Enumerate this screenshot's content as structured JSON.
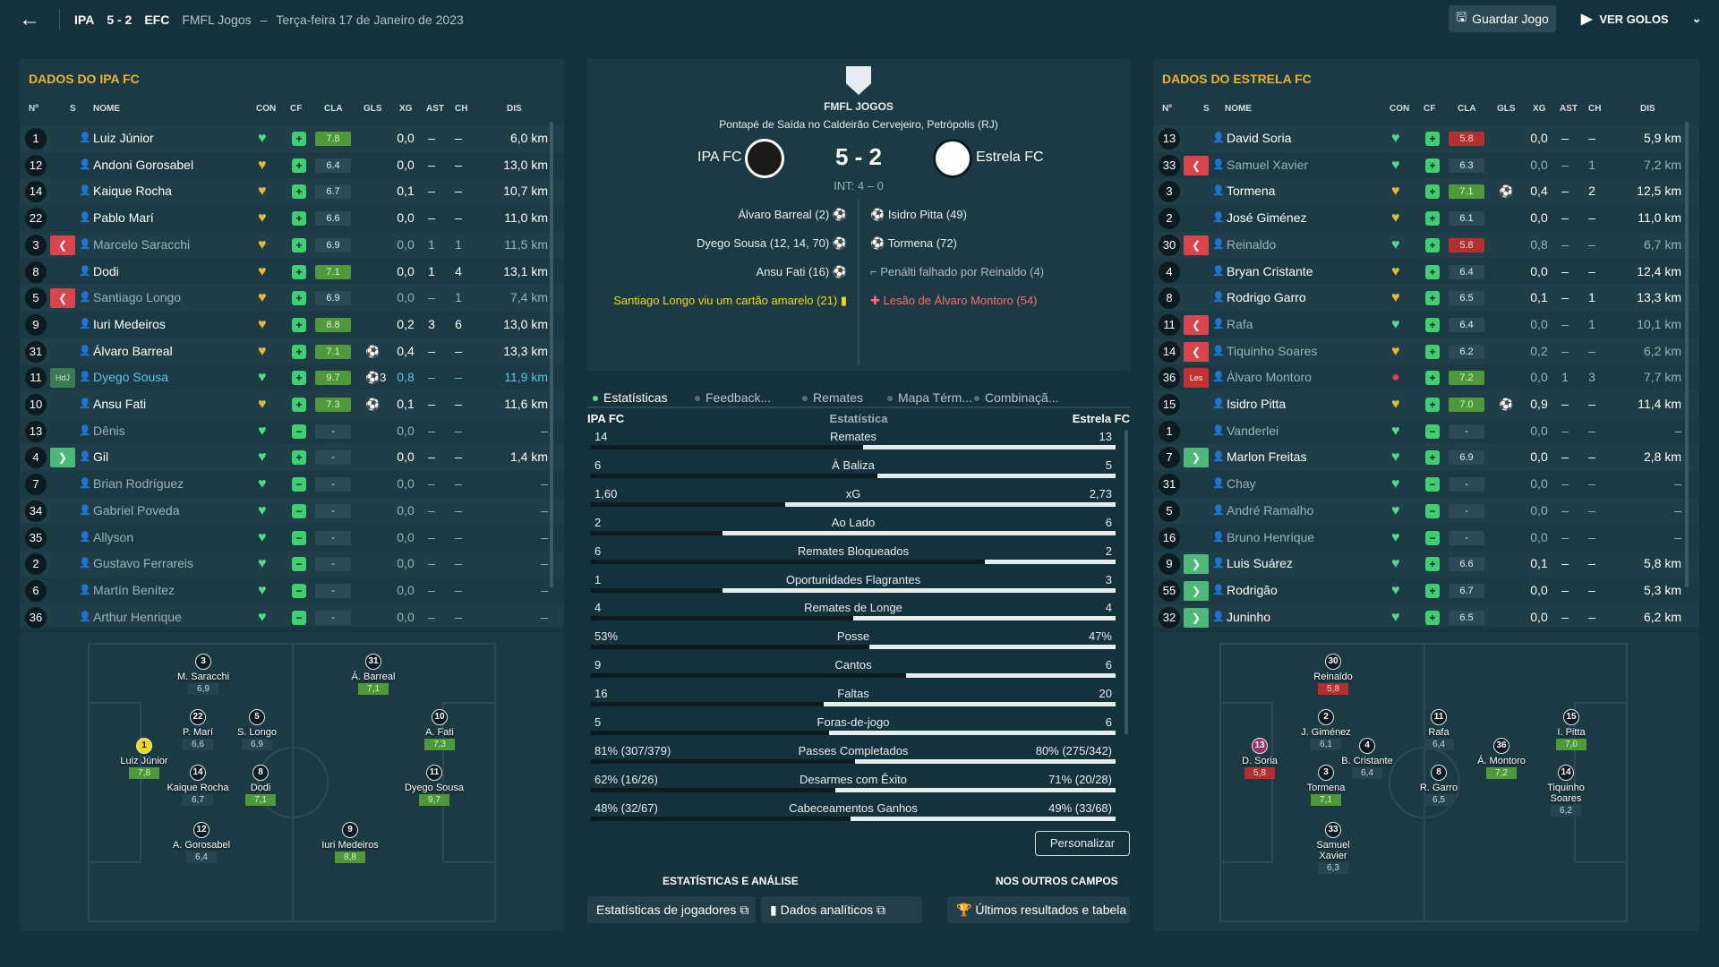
{
  "header": {
    "home_abbr": "IPA",
    "score": "5 - 2",
    "away_abbr": "EFC",
    "competition": "FMFL Jogos",
    "dash": "–",
    "date": "Terça-feira 17 de Janeiro de 2023",
    "save_label": "Guardar Jogo",
    "goals_label": "VER GOLOS"
  },
  "columns": {
    "no": "Nº",
    "s": "S",
    "name": "NOME",
    "con": "CON",
    "cf": "CF",
    "cla": "CLA",
    "gls": "GLS",
    "xg": "XG",
    "ast": "AST",
    "ch": "CH",
    "dis": "DIS"
  },
  "home": {
    "title": "DADOS DO IPA FC",
    "players": [
      {
        "no": "1",
        "sub": "",
        "name": "Luiz Júnior",
        "con": "g",
        "cla": "7.8",
        "cc": "g",
        "gls": "",
        "xg": "0,0",
        "ast": "–",
        "ch": "–",
        "dis": "6,0 km",
        "dim": false
      },
      {
        "no": "12",
        "sub": "",
        "name": "Andoni Gorosabel",
        "con": "y",
        "cla": "6.4",
        "cc": "",
        "gls": "",
        "xg": "0,0",
        "ast": "–",
        "ch": "–",
        "dis": "13,0 km",
        "dim": false
      },
      {
        "no": "14",
        "sub": "",
        "name": "Kaique Rocha",
        "con": "y",
        "cla": "6.7",
        "cc": "",
        "gls": "",
        "xg": "0,1",
        "ast": "–",
        "ch": "–",
        "dis": "10,7 km",
        "dim": false
      },
      {
        "no": "22",
        "sub": "",
        "name": "Pablo Marí",
        "con": "y",
        "cla": "6.6",
        "cc": "",
        "gls": "",
        "xg": "0,0",
        "ast": "–",
        "ch": "–",
        "dis": "11,0 km",
        "dim": false
      },
      {
        "no": "3",
        "sub": "out",
        "name": "Marcelo Saracchi",
        "con": "y",
        "cla": "6.9",
        "cc": "",
        "gls": "",
        "xg": "0,0",
        "ast": "1",
        "ch": "1",
        "dis": "11,5 km",
        "dim": true
      },
      {
        "no": "8",
        "sub": "",
        "name": "Dodi",
        "con": "y",
        "cla": "7.1",
        "cc": "g",
        "gls": "",
        "xg": "0,0",
        "ast": "1",
        "ch": "4",
        "dis": "13,1 km",
        "dim": false
      },
      {
        "no": "5",
        "sub": "out",
        "name": "Santiago Longo",
        "con": "y",
        "cla": "6.9",
        "cc": "",
        "gls": "",
        "xg": "0,0",
        "ast": "–",
        "ch": "1",
        "dis": "7,4 km",
        "dim": true
      },
      {
        "no": "9",
        "sub": "",
        "name": "Iuri Medeiros",
        "con": "y",
        "cla": "8.8",
        "cc": "g",
        "gls": "",
        "xg": "0,2",
        "ast": "3",
        "ch": "6",
        "dis": "13,0 km",
        "dim": false
      },
      {
        "no": "31",
        "sub": "",
        "name": "Álvaro Barreal",
        "con": "y",
        "cla": "7.1",
        "cc": "g",
        "gls": "⚽",
        "xg": "0,4",
        "ast": "–",
        "ch": "–",
        "dis": "13,3 km",
        "dim": false
      },
      {
        "no": "11",
        "sub": "motm",
        "name": "Dyego Sousa",
        "con": "g",
        "cla": "9.7",
        "cc": "g",
        "gls": "⚽3",
        "xg": "0,8",
        "ast": "–",
        "ch": "–",
        "dis": "11,9 km",
        "dim": false,
        "hl": true
      },
      {
        "no": "10",
        "sub": "",
        "name": "Ansu Fati",
        "con": "y",
        "cla": "7.3",
        "cc": "g",
        "gls": "⚽",
        "xg": "0,1",
        "ast": "–",
        "ch": "–",
        "dis": "11,6 km",
        "dim": false
      },
      {
        "no": "13",
        "sub": "",
        "name": "Dênis",
        "con": "g",
        "cla": "-",
        "cc": "",
        "gls": "",
        "xg": "0,0",
        "ast": "–",
        "ch": "–",
        "dis": "–",
        "dim": true
      },
      {
        "no": "4",
        "sub": "in",
        "name": "Gil",
        "con": "g",
        "cla": "-",
        "cc": "",
        "gls": "",
        "xg": "0,0",
        "ast": "–",
        "ch": "–",
        "dis": "1,4 km",
        "dim": false
      },
      {
        "no": "7",
        "sub": "",
        "name": "Brian Rodríguez",
        "con": "g",
        "cla": "-",
        "cc": "",
        "gls": "",
        "xg": "0,0",
        "ast": "–",
        "ch": "–",
        "dis": "–",
        "dim": true
      },
      {
        "no": "34",
        "sub": "",
        "name": "Gabriel Poveda",
        "con": "g",
        "cla": "-",
        "cc": "",
        "gls": "",
        "xg": "0,0",
        "ast": "–",
        "ch": "–",
        "dis": "–",
        "dim": true
      },
      {
        "no": "35",
        "sub": "",
        "name": "Allyson",
        "con": "g",
        "cla": "-",
        "cc": "",
        "gls": "",
        "xg": "0,0",
        "ast": "–",
        "ch": "–",
        "dis": "–",
        "dim": true
      },
      {
        "no": "2",
        "sub": "",
        "name": "Gustavo Ferrareis",
        "con": "g",
        "cla": "-",
        "cc": "",
        "gls": "",
        "xg": "0,0",
        "ast": "–",
        "ch": "–",
        "dis": "–",
        "dim": true
      },
      {
        "no": "6",
        "sub": "",
        "name": "Martín Benítez",
        "con": "g",
        "cla": "-",
        "cc": "",
        "gls": "",
        "xg": "0,0",
        "ast": "–",
        "ch": "–",
        "dis": "–",
        "dim": true
      },
      {
        "no": "36",
        "sub": "",
        "name": "Arthur Henrique",
        "con": "g",
        "cla": "-",
        "cc": "",
        "gls": "",
        "xg": "0,0",
        "ast": "–",
        "ch": "–",
        "dis": "–",
        "dim": true
      }
    ]
  },
  "away": {
    "title": "DADOS DO ESTRELA FC",
    "players": [
      {
        "no": "13",
        "sub": "",
        "name": "David Soria",
        "con": "g",
        "cla": "5.8",
        "cc": "r",
        "gls": "",
        "xg": "0,0",
        "ast": "–",
        "ch": "–",
        "dis": "5,9 km",
        "dim": false
      },
      {
        "no": "33",
        "sub": "out",
        "name": "Samuel Xavier",
        "con": "g",
        "cla": "6.3",
        "cc": "",
        "gls": "",
        "xg": "0,0",
        "ast": "–",
        "ch": "1",
        "dis": "7,2 km",
        "dim": true
      },
      {
        "no": "3",
        "sub": "",
        "name": "Tormena",
        "con": "y",
        "cla": "7.1",
        "cc": "g",
        "gls": "⚽",
        "xg": "0,4",
        "ast": "–",
        "ch": "2",
        "dis": "12,5 km",
        "dim": false
      },
      {
        "no": "2",
        "sub": "",
        "name": "José Giménez",
        "con": "y",
        "cla": "6.1",
        "cc": "",
        "gls": "",
        "xg": "0,0",
        "ast": "–",
        "ch": "–",
        "dis": "11,0 km",
        "dim": false
      },
      {
        "no": "30",
        "sub": "out",
        "name": "Reinaldo",
        "con": "g",
        "cla": "5.8",
        "cc": "r",
        "gls": "",
        "xg": "0,8",
        "ast": "–",
        "ch": "–",
        "dis": "6,7 km",
        "dim": true
      },
      {
        "no": "4",
        "sub": "",
        "name": "Bryan Cristante",
        "con": "y",
        "cla": "6.4",
        "cc": "",
        "gls": "",
        "xg": "0,0",
        "ast": "–",
        "ch": "–",
        "dis": "12,4 km",
        "dim": false
      },
      {
        "no": "8",
        "sub": "",
        "name": "Rodrigo Garro",
        "con": "y",
        "cla": "6.5",
        "cc": "",
        "gls": "",
        "xg": "0,1",
        "ast": "–",
        "ch": "1",
        "dis": "13,3 km",
        "dim": false
      },
      {
        "no": "11",
        "sub": "out",
        "name": "Rafa",
        "con": "g",
        "cla": "6.4",
        "cc": "",
        "gls": "",
        "xg": "0,0",
        "ast": "–",
        "ch": "1",
        "dis": "10,1 km",
        "dim": true
      },
      {
        "no": "14",
        "sub": "out",
        "name": "Tiquinho Soares",
        "con": "y",
        "cla": "6.2",
        "cc": "",
        "gls": "",
        "xg": "0,2",
        "ast": "–",
        "ch": "–",
        "dis": "6,2 km",
        "dim": true
      },
      {
        "no": "36",
        "sub": "les",
        "name": "Álvaro Montoro",
        "con": "r",
        "cla": "7.2",
        "cc": "g",
        "gls": "",
        "xg": "0,0",
        "ast": "1",
        "ch": "3",
        "dis": "7,7 km",
        "dim": true
      },
      {
        "no": "15",
        "sub": "",
        "name": "Isidro Pitta",
        "con": "y",
        "cla": "7.0",
        "cc": "g",
        "gls": "⚽",
        "xg": "0,9",
        "ast": "–",
        "ch": "–",
        "dis": "11,4 km",
        "dim": false
      },
      {
        "no": "1",
        "sub": "",
        "name": "Vanderlei",
        "con": "g",
        "cla": "-",
        "cc": "",
        "gls": "",
        "xg": "0,0",
        "ast": "–",
        "ch": "–",
        "dis": "–",
        "dim": true
      },
      {
        "no": "7",
        "sub": "in",
        "name": "Marlon Freitas",
        "con": "g",
        "cla": "6.9",
        "cc": "",
        "gls": "",
        "xg": "0,0",
        "ast": "–",
        "ch": "–",
        "dis": "2,8 km",
        "dim": false
      },
      {
        "no": "31",
        "sub": "",
        "name": "Chay",
        "con": "g",
        "cla": "-",
        "cc": "",
        "gls": "",
        "xg": "0,0",
        "ast": "–",
        "ch": "–",
        "dis": "–",
        "dim": true
      },
      {
        "no": "5",
        "sub": "",
        "name": "André Ramalho",
        "con": "g",
        "cla": "-",
        "cc": "",
        "gls": "",
        "xg": "0,0",
        "ast": "–",
        "ch": "–",
        "dis": "–",
        "dim": true
      },
      {
        "no": "16",
        "sub": "",
        "name": "Bruno Henrique",
        "con": "g",
        "cla": "-",
        "cc": "",
        "gls": "",
        "xg": "0,0",
        "ast": "–",
        "ch": "–",
        "dis": "–",
        "dim": true
      },
      {
        "no": "9",
        "sub": "in",
        "name": "Luis Suárez",
        "con": "g",
        "cla": "6.6",
        "cc": "",
        "gls": "",
        "xg": "0,1",
        "ast": "–",
        "ch": "–",
        "dis": "5,8 km",
        "dim": false
      },
      {
        "no": "55",
        "sub": "in",
        "name": "Rodrigão",
        "con": "g",
        "cla": "6.7",
        "cc": "",
        "gls": "",
        "xg": "0,0",
        "ast": "–",
        "ch": "–",
        "dis": "5,3 km",
        "dim": false
      },
      {
        "no": "32",
        "sub": "in",
        "name": "Juninho",
        "con": "g",
        "cla": "6.5",
        "cc": "",
        "gls": "",
        "xg": "0,0",
        "ast": "–",
        "ch": "–",
        "dis": "6,2 km",
        "dim": false
      }
    ]
  },
  "home_pitch": [
    {
      "no": "3",
      "name": "M. Saracchi",
      "rating": "6,9",
      "rc": ""
    },
    {
      "no": "31",
      "name": "Á. Barreal",
      "rating": "7,1",
      "rc": "g"
    },
    {
      "no": "22",
      "name": "P. Marí",
      "rating": "6,6",
      "rc": ""
    },
    {
      "no": "5",
      "name": "S. Longo",
      "rating": "6,9",
      "rc": ""
    },
    {
      "no": "10",
      "name": "A. Fati",
      "rating": "7,3",
      "rc": "g"
    },
    {
      "no": "1",
      "name": "Luiz Júnior",
      "rating": "7,8",
      "rc": "g",
      "gk": true
    },
    {
      "no": "14",
      "name": "Kaique Rocha",
      "rating": "6,7",
      "rc": ""
    },
    {
      "no": "8",
      "name": "Dodi",
      "rating": "7,1",
      "rc": "g"
    },
    {
      "no": "11",
      "name": "Dyego Sousa",
      "rating": "9,7",
      "rc": "g"
    },
    {
      "no": "12",
      "name": "A. Gorosabel",
      "rating": "6,4",
      "rc": ""
    },
    {
      "no": "9",
      "name": "Iuri Medeiros",
      "rating": "8,8",
      "rc": "g"
    }
  ],
  "away_pitch": [
    {
      "no": "30",
      "name": "Reinaldo",
      "rating": "5,8",
      "rc": "r"
    },
    {
      "no": "2",
      "name": "J. Giménez",
      "rating": "6,1",
      "rc": ""
    },
    {
      "no": "11",
      "name": "Rafa",
      "rating": "6,4",
      "rc": ""
    },
    {
      "no": "15",
      "name": "I. Pitta",
      "rating": "7,0",
      "rc": "g"
    },
    {
      "no": "13",
      "name": "D. Soria",
      "rating": "5,8",
      "rc": "r",
      "gk": true
    },
    {
      "no": "4",
      "name": "B. Cristante",
      "rating": "6,4",
      "rc": ""
    },
    {
      "no": "36",
      "name": "Á. Montoro",
      "rating": "7,2",
      "rc": "g"
    },
    {
      "no": "3",
      "name": "Tormena",
      "rating": "7,1",
      "rc": "g"
    },
    {
      "no": "8",
      "name": "R. Garro",
      "rating": "6,5",
      "rc": ""
    },
    {
      "no": "14",
      "name": "Tiquinho Soares",
      "rating": "6,2",
      "rc": ""
    },
    {
      "no": "33",
      "name": "Samuel Xavier",
      "rating": "6,3",
      "rc": ""
    }
  ],
  "match": {
    "competition": "FMFL JOGOS",
    "kickoff": "Pontapé de Saída no Caldeirão Cervejeiro, Petrópolis (RJ)",
    "home": "IPA FC",
    "away": "Estrela FC",
    "score": "5 - 2",
    "ht": "INT: 4 – 0",
    "home_events": [
      "Álvaro Barreal (2)",
      "Dyego Sousa (12, 14, 70)",
      "Ansu Fati (16)"
    ],
    "home_card": "Santiago Longo viu um cartão amarelo (21)",
    "away_events": [
      "Isidro Pitta (49)",
      "Tormena (72)"
    ],
    "away_missed": "Penálti falhado por Reinaldo (4)",
    "away_injury": "Lesão de Álvaro Montoro (54)"
  },
  "tabs": [
    "Estatísticas",
    "Feedback...",
    "Remates",
    "Mapa Térm...",
    "Combinaçã..."
  ],
  "stats_header": {
    "home": "IPA FC",
    "label": "Estatística",
    "away": "Estrela FC"
  },
  "stats": [
    {
      "label": "Remates",
      "home": "14",
      "away": "13",
      "h": 14,
      "a": 13
    },
    {
      "label": "À Baliza",
      "home": "6",
      "away": "5",
      "h": 6,
      "a": 5
    },
    {
      "label": "xG",
      "home": "1,60",
      "away": "2,73",
      "h": 1.6,
      "a": 2.73
    },
    {
      "label": "Ao Lado",
      "home": "2",
      "away": "6",
      "h": 2,
      "a": 6
    },
    {
      "label": "Remates Bloqueados",
      "home": "6",
      "away": "2",
      "h": 6,
      "a": 2
    },
    {
      "label": "Oportunidades Flagrantes",
      "home": "1",
      "away": "3",
      "h": 1,
      "a": 3
    },
    {
      "label": "Remates de Longe",
      "home": "4",
      "away": "4",
      "h": 4,
      "a": 4
    },
    {
      "label": "Posse",
      "home": "53%",
      "away": "47%",
      "h": 53,
      "a": 47
    },
    {
      "label": "Cantos",
      "home": "9",
      "away": "6",
      "h": 9,
      "a": 6
    },
    {
      "label": "Faltas",
      "home": "16",
      "away": "20",
      "h": 16,
      "a": 20
    },
    {
      "label": "Foras-de-jogo",
      "home": "5",
      "away": "6",
      "h": 5,
      "a": 6
    },
    {
      "label": "Passes Completados",
      "home": "81% (307/379)",
      "away": "80% (275/342)",
      "h": 81,
      "a": 80
    },
    {
      "label": "Desarmes com Êxito",
      "home": "62% (16/26)",
      "away": "71% (20/28)",
      "h": 62,
      "a": 71
    },
    {
      "label": "Cabeceamentos Ganhos",
      "home": "48% (32/67)",
      "away": "49% (33/68)",
      "h": 48,
      "a": 49
    }
  ],
  "customize": "Personalizar",
  "sections": {
    "analysis": "ESTATÍSTICAS E ANÁLISE",
    "others": "NOS OUTROS CAMPOS"
  },
  "links": {
    "players": "Estatísticas de jogadores",
    "analytics": "Dados analíticos",
    "results": "Últimos resultados e tabela"
  }
}
